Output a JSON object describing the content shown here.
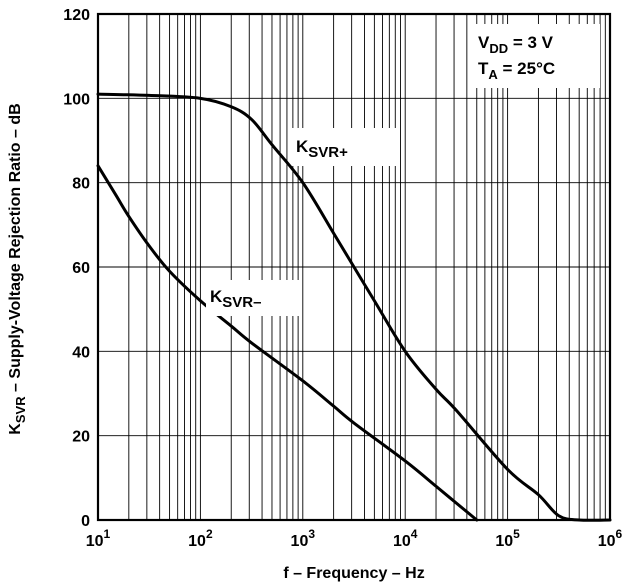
{
  "chart_data": {
    "type": "line",
    "x_scale": "log",
    "xlim": [
      10,
      1000000
    ],
    "ylim": [
      0,
      120
    ],
    "grid": true,
    "xlabel": "f – Frequency – Hz",
    "ylabel": {
      "prefix": "K",
      "sub": "SVR",
      "rest": "  – Supply-Voltage Rejection Ratio – dB"
    },
    "y_ticks": [
      "0",
      "20",
      "40",
      "60",
      "80",
      "100",
      "120"
    ],
    "x_ticks": [
      {
        "base": "10",
        "exp": "1"
      },
      {
        "base": "10",
        "exp": "2"
      },
      {
        "base": "10",
        "exp": "3"
      },
      {
        "base": "10",
        "exp": "4"
      },
      {
        "base": "10",
        "exp": "5"
      },
      {
        "base": "10",
        "exp": "6"
      }
    ],
    "conditions": [
      {
        "main": "V",
        "sub": "DD",
        "rest": " = 3 V"
      },
      {
        "main": "T",
        "sub": "A",
        "rest": " = 25°C"
      }
    ],
    "series": [
      {
        "name": {
          "main": "K",
          "sub": "SVR+"
        },
        "x": [
          10,
          31.6,
          100,
          200,
          316,
          500,
          1000,
          2000,
          3160,
          5000,
          10000,
          20000,
          31600,
          100000,
          200000,
          316000,
          500000,
          1000000
        ],
        "y": [
          101,
          100.7,
          100,
          98,
          95,
          89,
          80,
          68,
          60,
          52,
          40,
          31,
          26,
          12,
          6,
          1,
          0,
          0
        ]
      },
      {
        "name": {
          "main": "K",
          "sub": "SVR–"
        },
        "x": [
          10,
          15,
          20,
          31.6,
          50,
          100,
          200,
          316,
          1000,
          2000,
          3160,
          10000,
          20000,
          31600,
          50000
        ],
        "y": [
          84,
          77,
          72,
          65,
          59,
          52,
          46,
          42,
          33,
          27,
          23,
          14,
          8,
          4,
          0
        ]
      }
    ]
  }
}
